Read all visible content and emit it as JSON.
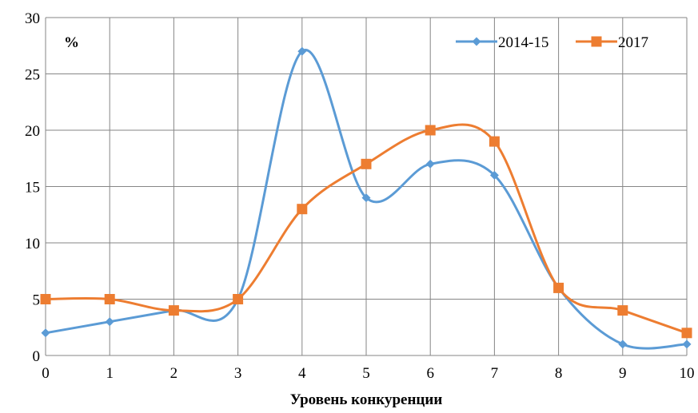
{
  "chart_data": {
    "type": "line",
    "title": "",
    "xlabel": "Уровень конкуренции",
    "ylabel": "",
    "unit_label": "%",
    "x": [
      0,
      1,
      2,
      3,
      4,
      5,
      6,
      7,
      8,
      9,
      10
    ],
    "xlim": [
      0,
      10
    ],
    "ylim": [
      0,
      30
    ],
    "xticks": [
      "0",
      "1",
      "2",
      "3",
      "4",
      "5",
      "6",
      "7",
      "8",
      "9",
      "10"
    ],
    "yticks": [
      "0",
      "5",
      "10",
      "15",
      "20",
      "25",
      "30"
    ],
    "grid": true,
    "smooth": true,
    "legend_position": "top-right",
    "series": [
      {
        "name": "2014-15",
        "color": "#5B9BD5",
        "marker": "diamond",
        "values": [
          2,
          3,
          4,
          5,
          27,
          14,
          17,
          16,
          6,
          1,
          1
        ]
      },
      {
        "name": "2017",
        "color": "#ED7D31",
        "marker": "square",
        "values": [
          5,
          5,
          4,
          5,
          13,
          17,
          20,
          19,
          6,
          4,
          2
        ]
      }
    ]
  }
}
